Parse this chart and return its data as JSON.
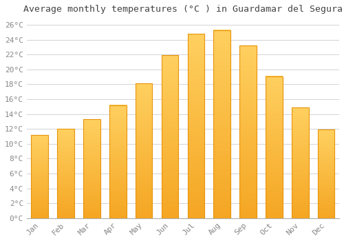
{
  "title": "Average monthly temperatures (°C ) in Guardamar del Segura",
  "months": [
    "Jan",
    "Feb",
    "Mar",
    "Apr",
    "May",
    "Jun",
    "Jul",
    "Aug",
    "Sep",
    "Oct",
    "Nov",
    "Dec"
  ],
  "temperatures": [
    11.2,
    12.0,
    13.3,
    15.2,
    18.1,
    21.9,
    24.8,
    25.3,
    23.2,
    19.1,
    14.9,
    11.9
  ],
  "bar_color_bottom": "#F5A623",
  "bar_color_top": "#FFD060",
  "bar_edge_color": "#E8930A",
  "background_color": "#FFFFFF",
  "plot_bg_color": "#FFFFFF",
  "grid_color": "#CCCCCC",
  "title_color": "#444444",
  "tick_label_color": "#888888",
  "axis_label_color": "#888888",
  "ylim": [
    0,
    27
  ],
  "yticks": [
    0,
    2,
    4,
    6,
    8,
    10,
    12,
    14,
    16,
    18,
    20,
    22,
    24,
    26
  ],
  "title_fontsize": 9.5,
  "tick_fontsize": 8,
  "font_family": "monospace",
  "bar_width": 0.65
}
